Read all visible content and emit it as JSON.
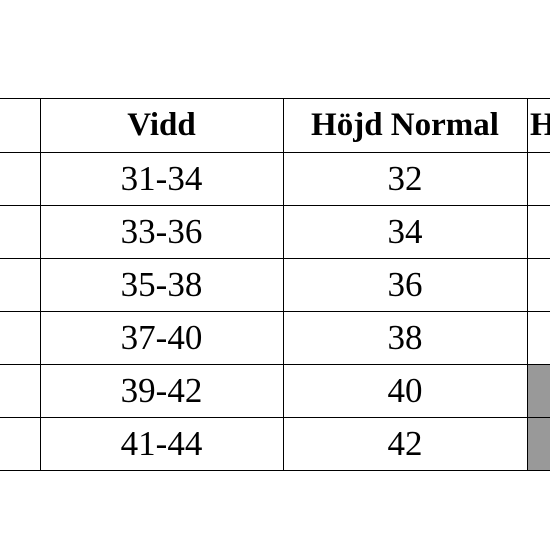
{
  "table": {
    "header": [
      "Vidd",
      "Höjd Normal",
      "H"
    ],
    "rows": [
      [
        "31-34",
        "32"
      ],
      [
        "33-36",
        "34"
      ],
      [
        "35-38",
        "36"
      ],
      [
        "37-40",
        "38"
      ],
      [
        "39-42",
        "40"
      ],
      [
        "41-44",
        "42"
      ]
    ]
  }
}
